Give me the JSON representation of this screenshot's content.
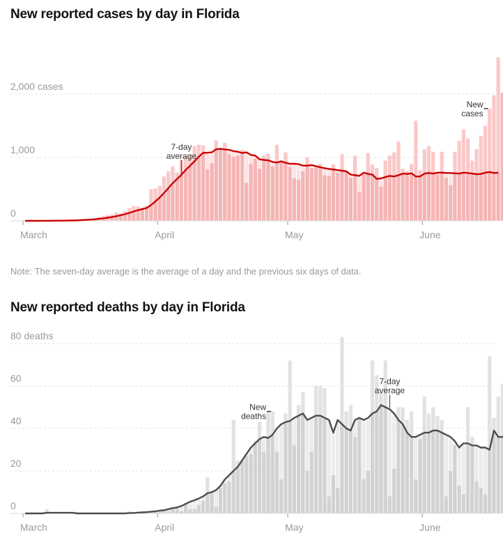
{
  "chart_data": [
    {
      "id": "cases",
      "type": "bar",
      "title": "New reported cases by day in Florida",
      "xlabel": "",
      "ylabel": "cases",
      "ylim": [
        0,
        2000
      ],
      "yticks": [
        {
          "value": 0,
          "label": "0"
        },
        {
          "value": 1000,
          "label": "1,000"
        },
        {
          "value": 2000,
          "label": "2,000 cases"
        }
      ],
      "xticks": [
        {
          "day_index": 0,
          "label": "March"
        },
        {
          "day_index": 31,
          "label": "April"
        },
        {
          "day_index": 61,
          "label": "May"
        },
        {
          "day_index": 92,
          "label": "June"
        }
      ],
      "start_date": "March 1",
      "grid": true,
      "annotations": [
        {
          "text": [
            "7-day",
            "average"
          ],
          "target": "average",
          "day_index": 36
        },
        {
          "text": [
            "New",
            "cases"
          ],
          "target": "bars",
          "day_index": 107
        }
      ],
      "colors": {
        "bar_above_avg": "#fbc8c8",
        "bar_below_avg": "#f5b5b5",
        "avg_line": "#cc0000"
      },
      "series": [
        {
          "name": "New cases",
          "values": [
            0,
            0,
            0,
            0,
            0,
            2,
            2,
            4,
            3,
            6,
            10,
            15,
            18,
            25,
            30,
            35,
            40,
            60,
            80,
            90,
            100,
            130,
            120,
            150,
            200,
            230,
            225,
            210,
            240,
            500,
            510,
            550,
            700,
            780,
            860,
            760,
            960,
            1020,
            1040,
            1180,
            1200,
            1190,
            810,
            910,
            1270,
            1150,
            1230,
            1050,
            1010,
            1030,
            1120,
            600,
            900,
            980,
            820,
            1030,
            1060,
            860,
            1200,
            930,
            1080,
            850,
            670,
            650,
            780,
            1000,
            830,
            840,
            900,
            720,
            710,
            890,
            750,
            1050,
            790,
            680,
            1030,
            450,
            730,
            1070,
            890,
            830,
            540,
            950,
            1030,
            1080,
            1250,
            820,
            780,
            900,
            1580,
            800,
            1130,
            1180,
            1090,
            740,
            1090,
            680,
            560,
            1090,
            1260,
            1440,
            1300,
            950,
            1130,
            1340,
            1500,
            1770,
            1980,
            2580,
            2020,
            2783
          ]
        },
        {
          "name": "7-day average",
          "values": [
            0,
            0,
            0,
            0,
            0,
            1,
            1,
            2,
            2,
            3,
            4,
            6,
            8,
            11,
            15,
            19,
            24,
            32,
            40,
            49,
            60,
            74,
            88,
            105,
            125,
            148,
            168,
            185,
            203,
            250,
            305,
            367,
            440,
            515,
            595,
            660,
            725,
            803,
            870,
            940,
            1010,
            1072,
            1075,
            1080,
            1130,
            1135,
            1125,
            1120,
            1100,
            1090,
            1070,
            1080,
            1040,
            1030,
            970,
            960,
            955,
            930,
            920,
            940,
            915,
            900,
            900,
            895,
            870,
            870,
            880,
            860,
            845,
            830,
            820,
            810,
            800,
            790,
            780,
            730,
            720,
            710,
            760,
            740,
            730,
            660,
            670,
            690,
            710,
            700,
            720,
            745,
            740,
            750,
            700,
            700,
            745,
            755,
            745,
            760,
            760,
            755,
            755,
            750,
            745,
            760,
            755,
            745,
            735,
            740,
            760,
            770,
            755,
            760
          ]
        }
      ]
    },
    {
      "id": "deaths",
      "type": "bar",
      "title": "New reported deaths by day in Florida",
      "xlabel": "",
      "ylabel": "deaths",
      "ylim": [
        0,
        80
      ],
      "yticks": [
        {
          "value": 0,
          "label": "0"
        },
        {
          "value": 20,
          "label": "20"
        },
        {
          "value": 40,
          "label": "40"
        },
        {
          "value": 60,
          "label": "60"
        },
        {
          "value": 80,
          "label": "80 deaths"
        }
      ],
      "xticks": [
        {
          "day_index": 0,
          "label": "March"
        },
        {
          "day_index": 31,
          "label": "April"
        },
        {
          "day_index": 61,
          "label": "May"
        },
        {
          "day_index": 92,
          "label": "June"
        }
      ],
      "start_date": "March 1",
      "grid": true,
      "annotations": [
        {
          "text": [
            "New",
            "deaths"
          ],
          "target": "bars",
          "day_index": 57
        },
        {
          "text": [
            "7-day",
            "average"
          ],
          "target": "average",
          "day_index": 84
        }
      ],
      "colors": {
        "bar_above_avg": "#e2e2e2",
        "bar_below_avg": "#d2d2d2",
        "avg_line": "#4d4d4d"
      },
      "series": [
        {
          "name": "New deaths",
          "values": [
            0,
            0,
            0,
            0,
            0,
            2,
            0,
            0,
            0,
            0,
            0,
            0,
            0,
            0,
            0,
            0,
            0,
            0,
            0,
            0,
            0,
            0,
            0,
            0,
            1,
            0,
            0,
            0,
            1,
            0,
            1,
            1,
            1,
            1,
            2,
            2,
            1,
            5,
            2,
            2,
            4,
            6,
            17,
            10,
            3,
            12,
            14,
            15,
            44,
            25,
            25,
            27,
            28,
            34,
            43,
            29,
            48,
            48,
            29,
            16,
            47,
            72,
            32,
            51,
            57,
            20,
            29,
            60,
            60,
            59,
            8,
            18,
            12,
            83,
            48,
            51,
            36,
            45,
            16,
            20,
            72,
            65,
            57,
            72,
            8,
            21,
            50,
            50,
            44,
            48,
            16,
            35,
            55,
            47,
            50,
            46,
            44,
            8,
            20,
            32,
            13,
            9,
            50,
            36,
            15,
            12,
            9,
            74,
            45,
            55,
            61,
            56,
            18,
            18,
            61,
            63,
            38,
            57,
            48,
            7,
            8,
            55
          ]
        },
        {
          "name": "7-day average",
          "values": [
            0,
            0,
            0,
            0,
            0,
            0.3,
            0.3,
            0.3,
            0.3,
            0.3,
            0.3,
            0.3,
            0,
            0,
            0,
            0,
            0,
            0,
            0,
            0,
            0,
            0,
            0,
            0,
            0.2,
            0.2,
            0.4,
            0.5,
            0.6,
            0.8,
            1,
            1.3,
            1.5,
            2,
            2.5,
            2.8,
            3.5,
            4.5,
            5.5,
            6.2,
            7,
            8,
            9.5,
            10,
            11,
            13,
            16,
            18,
            20,
            22,
            25,
            28,
            31,
            33,
            35,
            36,
            35.5,
            37,
            40,
            42,
            43,
            43.5,
            45,
            46,
            47,
            44,
            45,
            46,
            46,
            45,
            44,
            38,
            44,
            42,
            40,
            39,
            44,
            45,
            44,
            45,
            47,
            48,
            51,
            50,
            49,
            47,
            44,
            42,
            38,
            36,
            36,
            37,
            38,
            38,
            39,
            39,
            38,
            37,
            36,
            34,
            31,
            33,
            33,
            32,
            32,
            31,
            31,
            30,
            39,
            36,
            36,
            36,
            35,
            35,
            36,
            34,
            33,
            34,
            32,
            34,
            33,
            33
          ]
        }
      ]
    }
  ],
  "note": "Note: The seven-day average is the average of a day and the previous six days of data."
}
